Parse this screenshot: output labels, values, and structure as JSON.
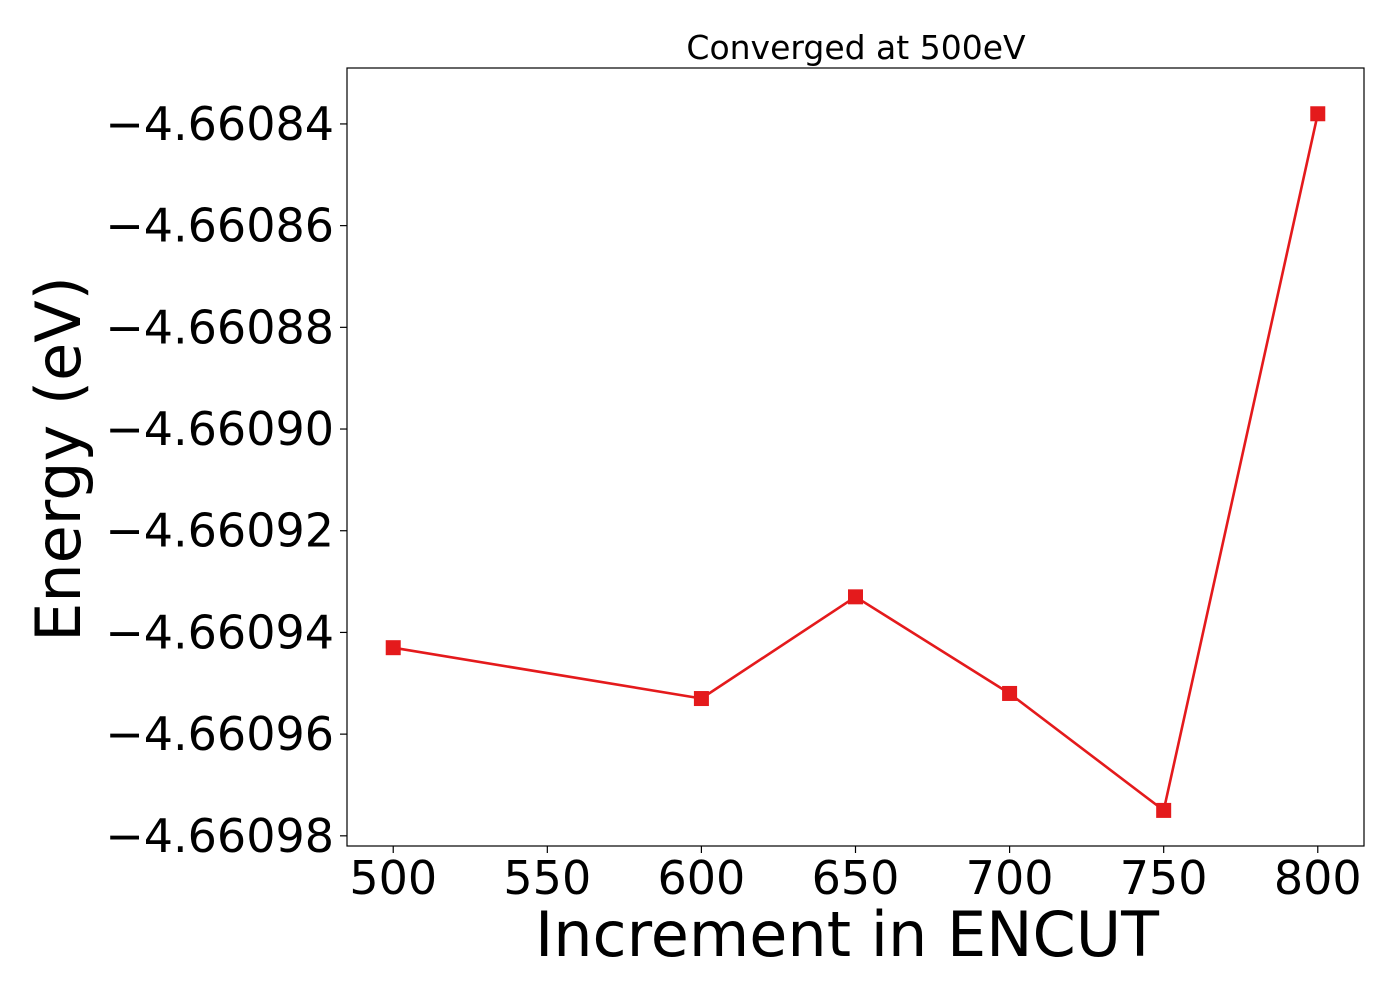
{
  "chart_data": {
    "type": "line",
    "title": "Converged at 500eV",
    "xlabel": "Increment in ENCUT",
    "ylabel": "Energy (eV)",
    "x": [
      500,
      600,
      650,
      700,
      750,
      800
    ],
    "series": [
      {
        "values": [
          -4.660943,
          -4.660953,
          -4.660933,
          -4.660952,
          -4.660975,
          -4.660838
        ],
        "color": "#e41a1c",
        "marker": "square"
      }
    ],
    "xlim": [
      485,
      815
    ],
    "ylim": [
      -4.660982,
      -4.660829
    ],
    "xticks": [
      500,
      550,
      600,
      650,
      700,
      750,
      800
    ],
    "xtick_labels": [
      "500",
      "550",
      "600",
      "650",
      "700",
      "750",
      "800"
    ],
    "yticks": [
      -4.66084,
      -4.66086,
      -4.66088,
      -4.6609,
      -4.66092,
      -4.66094,
      -4.66096,
      -4.66098
    ],
    "ytick_labels": [
      "−4.66084",
      "−4.66086",
      "−4.66088",
      "−4.66090",
      "−4.66092",
      "−4.66094",
      "−4.66096",
      "−4.66098"
    ],
    "grid": false,
    "legend": false
  }
}
